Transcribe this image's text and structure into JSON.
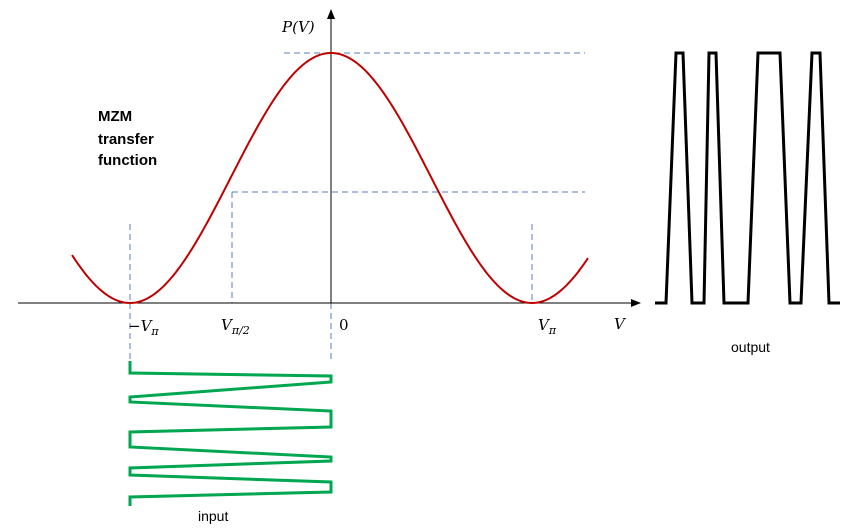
{
  "axes": {
    "y_label": "P(V)",
    "x_label": "V"
  },
  "ticks": {
    "neg_vpi": {
      "sign": "−",
      "main": "V",
      "sub": "π"
    },
    "vpi_half": {
      "main": "V",
      "sub": "π/2"
    },
    "zero": "0",
    "vpi": {
      "main": "V",
      "sub": "π"
    }
  },
  "annotation": {
    "lines": [
      "MZM",
      "transfer",
      "function"
    ]
  },
  "labels": {
    "input": "input",
    "output": "output"
  },
  "colors": {
    "transfer_curve": "#c00000",
    "guide_dashes": "#5b7db8",
    "input_signal": "#00a650",
    "output_signal": "#000000",
    "axes": "#000000"
  }
}
